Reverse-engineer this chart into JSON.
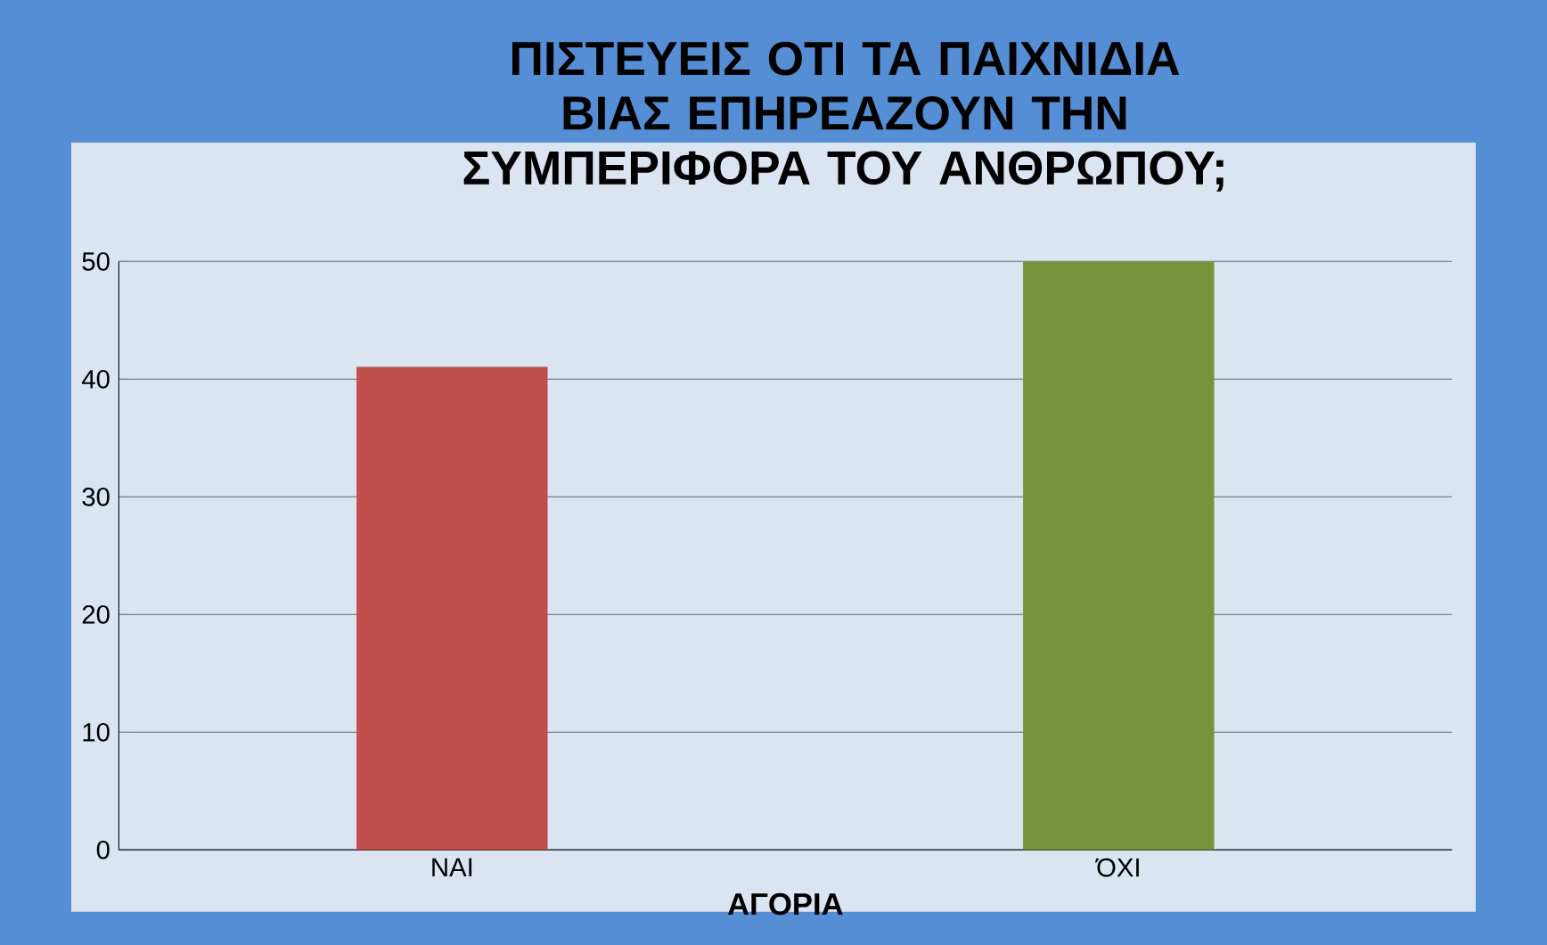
{
  "chart_data": {
    "type": "bar",
    "title": "ΠΙΣΤΕΥΕΙΣ ΟΤΙ ΤΑ ΠΑΙΧΝΙΔΙΑ ΒΙΑΣ ΕΠΗΡΕΑΖΟΥΝ ΤΗΝ ΣΥΜΠΕΡΙΦΟΡΑ ΤΟΥ ΑΝΘΡΩΠΟΥ;",
    "categories": [
      "ΝΑΙ",
      "ΌΧΙ"
    ],
    "xlabel": "ΑΓΟΡΙΑ",
    "values": [
      41,
      50
    ],
    "colors": [
      "#c0504d",
      "#77933c"
    ],
    "ylim": [
      0,
      50
    ],
    "yticks": [
      0,
      10,
      20,
      30,
      40,
      50
    ],
    "grid": "y"
  }
}
